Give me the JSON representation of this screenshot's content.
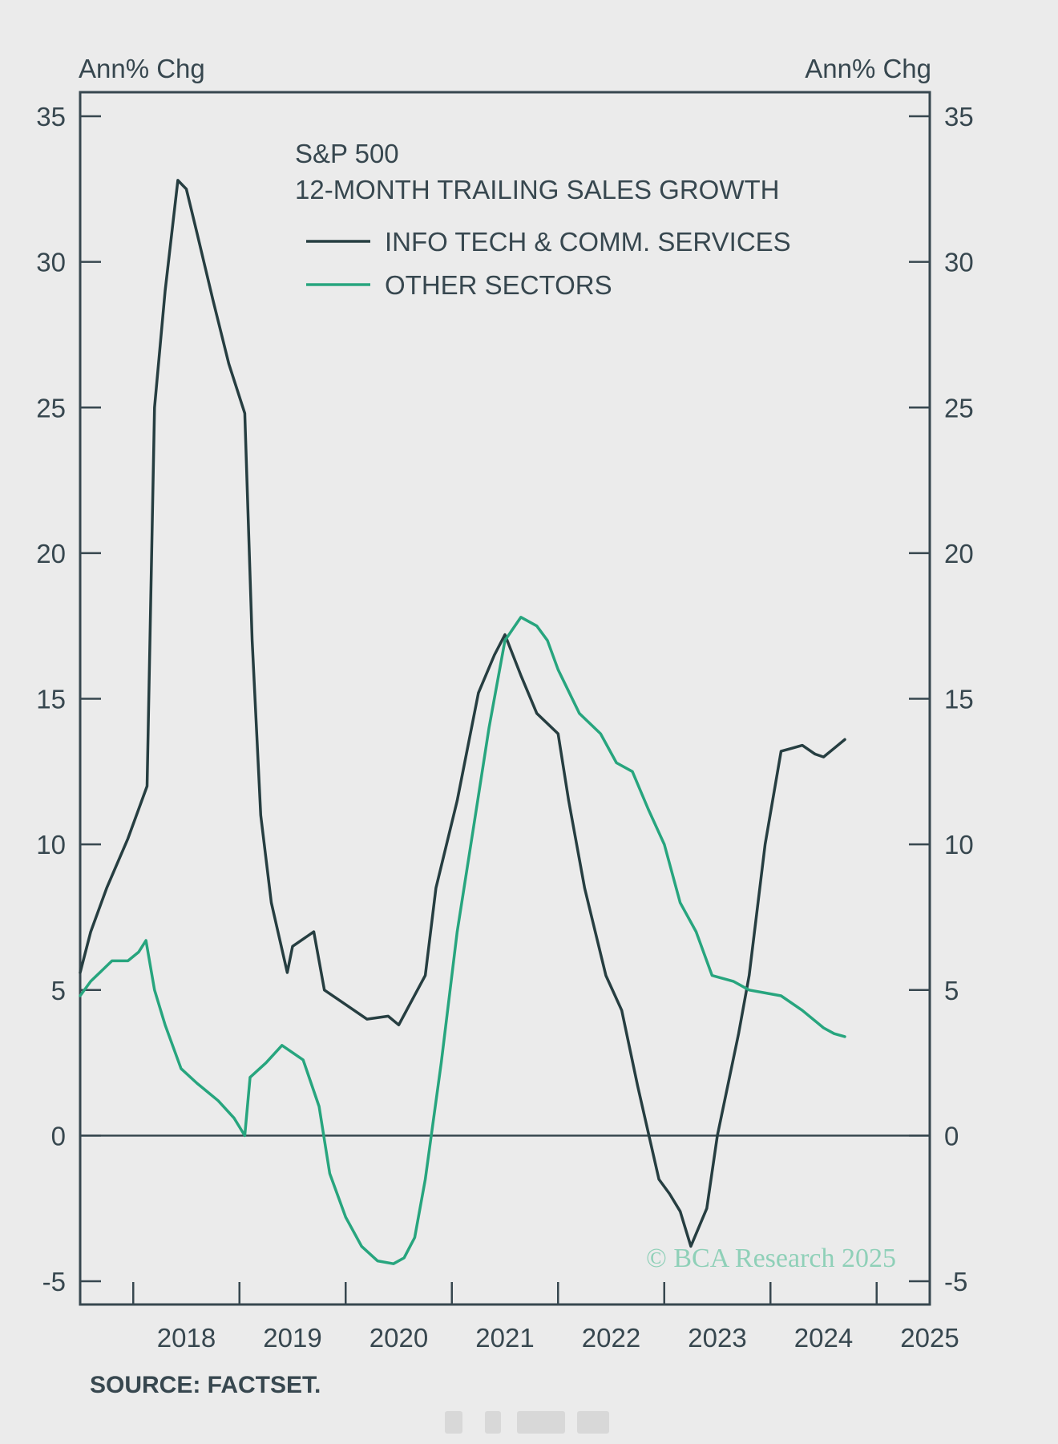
{
  "chart_data": {
    "type": "line",
    "title": "S&P 500",
    "subtitle": "12-MONTH TRAILING SALES GROWTH",
    "ylabel_left": "Ann% Chg",
    "ylabel_right": "Ann% Chg",
    "ylim": [
      -5,
      35
    ],
    "yticks": [
      -5,
      0,
      5,
      10,
      15,
      20,
      25,
      30,
      35
    ],
    "xlim": [
      2017.5,
      2025.5
    ],
    "xtick_labels": [
      "2018",
      "2019",
      "2020",
      "2021",
      "2022",
      "2023",
      "2024",
      "2025"
    ],
    "legend_position": "top-center",
    "grid": false,
    "zero_line": true,
    "source": "SOURCE: FACTSET.",
    "watermark": "© BCA Research 2025",
    "series": [
      {
        "name": "INFO TECH & COMM. SERVICES",
        "color": "#263e41",
        "points": [
          [
            2017.5,
            5.6
          ],
          [
            2017.6,
            7.0
          ],
          [
            2017.75,
            8.5
          ],
          [
            2017.95,
            10.2
          ],
          [
            2018.13,
            12.0
          ],
          [
            2018.2,
            25.0
          ],
          [
            2018.3,
            29.0
          ],
          [
            2018.42,
            32.8
          ],
          [
            2018.5,
            32.5
          ],
          [
            2018.6,
            31.0
          ],
          [
            2018.75,
            28.7
          ],
          [
            2018.9,
            26.5
          ],
          [
            2019.05,
            24.8
          ],
          [
            2019.12,
            17.0
          ],
          [
            2019.2,
            11.0
          ],
          [
            2019.3,
            8.0
          ],
          [
            2019.45,
            5.6
          ],
          [
            2019.5,
            6.5
          ],
          [
            2019.7,
            7.0
          ],
          [
            2019.8,
            5.0
          ],
          [
            2020.0,
            4.5
          ],
          [
            2020.2,
            4.0
          ],
          [
            2020.4,
            4.1
          ],
          [
            2020.5,
            3.8
          ],
          [
            2020.75,
            5.5
          ],
          [
            2020.85,
            8.5
          ],
          [
            2021.05,
            11.5
          ],
          [
            2021.25,
            15.2
          ],
          [
            2021.4,
            16.5
          ],
          [
            2021.5,
            17.2
          ],
          [
            2021.65,
            15.8
          ],
          [
            2021.8,
            14.5
          ],
          [
            2022.0,
            13.8
          ],
          [
            2022.1,
            11.5
          ],
          [
            2022.25,
            8.5
          ],
          [
            2022.45,
            5.5
          ],
          [
            2022.6,
            4.3
          ],
          [
            2022.75,
            1.7
          ],
          [
            2022.95,
            -1.5
          ],
          [
            2023.05,
            -2.0
          ],
          [
            2023.15,
            -2.6
          ],
          [
            2023.25,
            -3.8
          ],
          [
            2023.4,
            -2.5
          ],
          [
            2023.5,
            0.0
          ],
          [
            2023.7,
            3.5
          ],
          [
            2023.8,
            5.5
          ],
          [
            2023.95,
            10.0
          ],
          [
            2024.1,
            13.2
          ],
          [
            2024.2,
            13.3
          ],
          [
            2024.3,
            13.4
          ],
          [
            2024.42,
            13.1
          ],
          [
            2024.5,
            13.0
          ],
          [
            2024.6,
            13.3
          ],
          [
            2024.7,
            13.6
          ]
        ]
      },
      {
        "name": "OTHER SECTORS",
        "color": "#27a57e",
        "points": [
          [
            2017.5,
            4.8
          ],
          [
            2017.6,
            5.3
          ],
          [
            2017.8,
            6.0
          ],
          [
            2017.95,
            6.0
          ],
          [
            2018.05,
            6.3
          ],
          [
            2018.12,
            6.7
          ],
          [
            2018.2,
            5.0
          ],
          [
            2018.3,
            3.8
          ],
          [
            2018.45,
            2.3
          ],
          [
            2018.6,
            1.8
          ],
          [
            2018.8,
            1.2
          ],
          [
            2018.95,
            0.6
          ],
          [
            2019.05,
            0.0
          ],
          [
            2019.1,
            2.0
          ],
          [
            2019.25,
            2.5
          ],
          [
            2019.4,
            3.1
          ],
          [
            2019.6,
            2.6
          ],
          [
            2019.75,
            1.0
          ],
          [
            2019.85,
            -1.3
          ],
          [
            2020.0,
            -2.8
          ],
          [
            2020.15,
            -3.8
          ],
          [
            2020.3,
            -4.3
          ],
          [
            2020.45,
            -4.4
          ],
          [
            2020.55,
            -4.2
          ],
          [
            2020.65,
            -3.5
          ],
          [
            2020.75,
            -1.5
          ],
          [
            2020.9,
            2.5
          ],
          [
            2021.05,
            7.0
          ],
          [
            2021.2,
            10.5
          ],
          [
            2021.35,
            14.0
          ],
          [
            2021.5,
            17.0
          ],
          [
            2021.65,
            17.8
          ],
          [
            2021.8,
            17.5
          ],
          [
            2021.9,
            17.0
          ],
          [
            2022.0,
            16.0
          ],
          [
            2022.2,
            14.5
          ],
          [
            2022.4,
            13.8
          ],
          [
            2022.55,
            12.8
          ],
          [
            2022.7,
            12.5
          ],
          [
            2022.85,
            11.2
          ],
          [
            2023.0,
            10.0
          ],
          [
            2023.15,
            8.0
          ],
          [
            2023.3,
            7.0
          ],
          [
            2023.45,
            5.5
          ],
          [
            2023.65,
            5.3
          ],
          [
            2023.8,
            5.0
          ],
          [
            2023.95,
            4.9
          ],
          [
            2024.1,
            4.8
          ],
          [
            2024.3,
            4.3
          ],
          [
            2024.5,
            3.7
          ],
          [
            2024.6,
            3.5
          ],
          [
            2024.7,
            3.4
          ]
        ]
      }
    ]
  }
}
